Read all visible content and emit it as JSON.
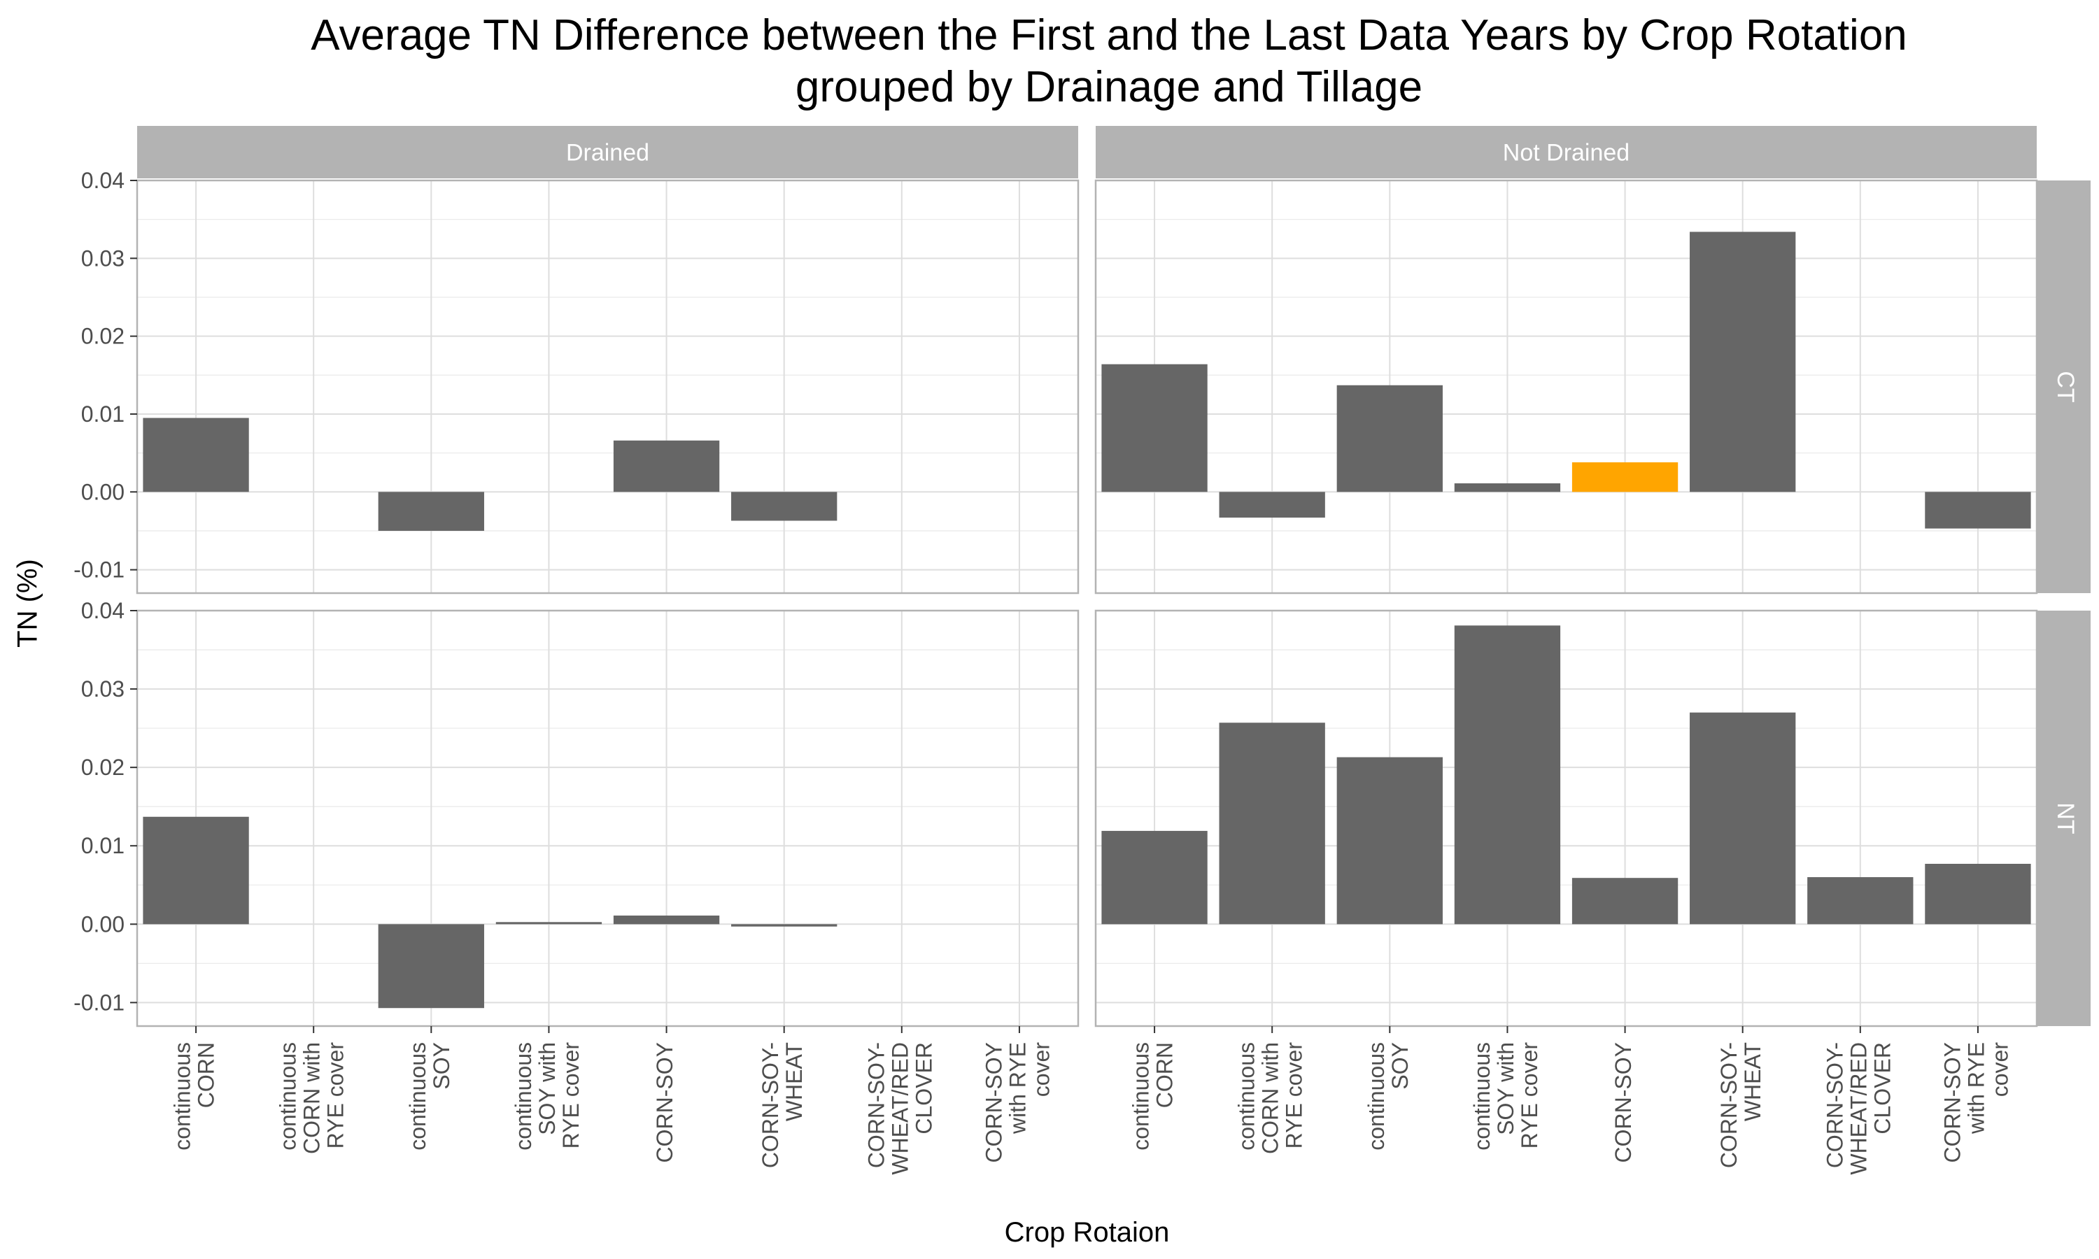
{
  "chart_data": {
    "type": "bar",
    "title_lines": [
      "Average TN Difference between the First and the Last Data Years by Crop Rotation",
      "grouped by Drainage and Tillage"
    ],
    "xlabel": "Crop Rotaion",
    "ylabel": "TN (%)",
    "ylim": [
      -0.013,
      0.04
    ],
    "yticks": [
      -0.01,
      0.0,
      0.01,
      0.02,
      0.03,
      0.04
    ],
    "ytick_labels": [
      "-0.01",
      "0.00",
      "0.01",
      "0.02",
      "0.03",
      "0.04"
    ],
    "grid": true,
    "categories": [
      "continuous CORN",
      "continuous CORN with RYE cover",
      "continuous SOY",
      "continuous SOY with RYE cover",
      "CORN-SOY",
      "CORN-SOY-WHEAT",
      "CORN-SOY-WHEAT/RED CLOVER",
      "CORN-SOY with RYE cover"
    ],
    "category_label_lines": [
      [
        "continuous",
        "CORN"
      ],
      [
        "continuous",
        "CORN with",
        "RYE cover"
      ],
      [
        "continuous",
        "SOY"
      ],
      [
        "continuous",
        "SOY with",
        "RYE cover"
      ],
      [
        "CORN-SOY"
      ],
      [
        "CORN-SOY-",
        "WHEAT"
      ],
      [
        "CORN-SOY-",
        "WHEAT/RED",
        "CLOVER"
      ],
      [
        "CORN-SOY",
        "with RYE",
        "cover"
      ]
    ],
    "col_facets": [
      "Drained",
      "Not Drained"
    ],
    "row_facets": [
      "CT",
      "NT"
    ],
    "bar_color": "#666666",
    "highlight_color": "#FFA500",
    "strip_color": "#B3B3B3",
    "panels": [
      {
        "drainage": "Drained",
        "tillage": "CT",
        "values": [
          0.0095,
          null,
          -0.005,
          null,
          0.0066,
          -0.0037,
          null,
          null
        ],
        "highlight": []
      },
      {
        "drainage": "Not Drained",
        "tillage": "CT",
        "values": [
          0.0164,
          -0.0033,
          0.0137,
          0.0011,
          0.0038,
          0.0334,
          null,
          -0.0047
        ],
        "highlight": [
          4
        ]
      },
      {
        "drainage": "Drained",
        "tillage": "NT",
        "values": [
          0.0137,
          null,
          -0.0107,
          0.0,
          0.0011,
          -0.0003,
          null,
          null
        ],
        "highlight": []
      },
      {
        "drainage": "Not Drained",
        "tillage": "NT",
        "values": [
          0.0119,
          0.0257,
          0.0213,
          0.0381,
          0.0059,
          0.027,
          0.006,
          0.0077
        ],
        "highlight": []
      }
    ]
  }
}
